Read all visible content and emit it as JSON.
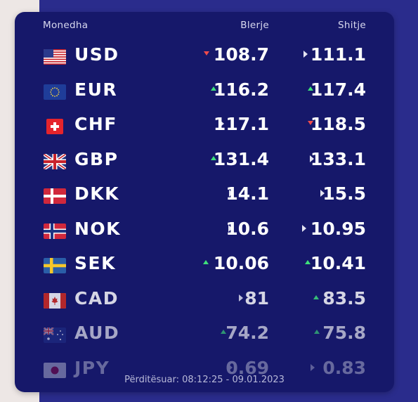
{
  "header": {
    "currency": "Monedha",
    "buy": "Blerje",
    "sell": "Shitje"
  },
  "rows": [
    {
      "code": "USD",
      "flag": "us-flag-icon",
      "buy": "108.7",
      "buy_trend": "down",
      "sell": "111.1",
      "sell_trend": "same"
    },
    {
      "code": "EUR",
      "flag": "eu-flag-icon",
      "buy": "116.2",
      "buy_trend": "up",
      "sell": "117.4",
      "sell_trend": "up"
    },
    {
      "code": "CHF",
      "flag": "ch-flag-icon",
      "buy": "117.1",
      "buy_trend": "same",
      "sell": "118.5",
      "sell_trend": "down"
    },
    {
      "code": "GBP",
      "flag": "gb-flag-icon",
      "buy": "131.4",
      "buy_trend": "up",
      "sell": "133.1",
      "sell_trend": "same"
    },
    {
      "code": "DKK",
      "flag": "dk-flag-icon",
      "buy": "14.1",
      "buy_trend": "same",
      "sell": "15.5",
      "sell_trend": "same"
    },
    {
      "code": "NOK",
      "flag": "no-flag-icon",
      "buy": "10.6",
      "buy_trend": "same",
      "sell": "10.95",
      "sell_trend": "same"
    },
    {
      "code": "SEK",
      "flag": "se-flag-icon",
      "buy": "10.06",
      "buy_trend": "up",
      "sell": "10.41",
      "sell_trend": "up"
    },
    {
      "code": "CAD",
      "flag": "ca-flag-icon",
      "buy": "81",
      "buy_trend": "same",
      "sell": "83.5",
      "sell_trend": "up"
    },
    {
      "code": "AUD",
      "flag": "au-flag-icon",
      "buy": "74.2",
      "buy_trend": "up",
      "sell": "75.8",
      "sell_trend": "up"
    },
    {
      "code": "JPY",
      "flag": "jp-flag-icon",
      "buy": "0.69",
      "buy_trend": "same",
      "sell": "0.83",
      "sell_trend": "same"
    }
  ],
  "footer": {
    "updated": "Përditësuar: 08:12:25 - 09.01.2023"
  },
  "colors": {
    "card": "#16186a",
    "background": "#2a2c8c",
    "up": "#3ee07a",
    "down": "#f04b4b"
  }
}
